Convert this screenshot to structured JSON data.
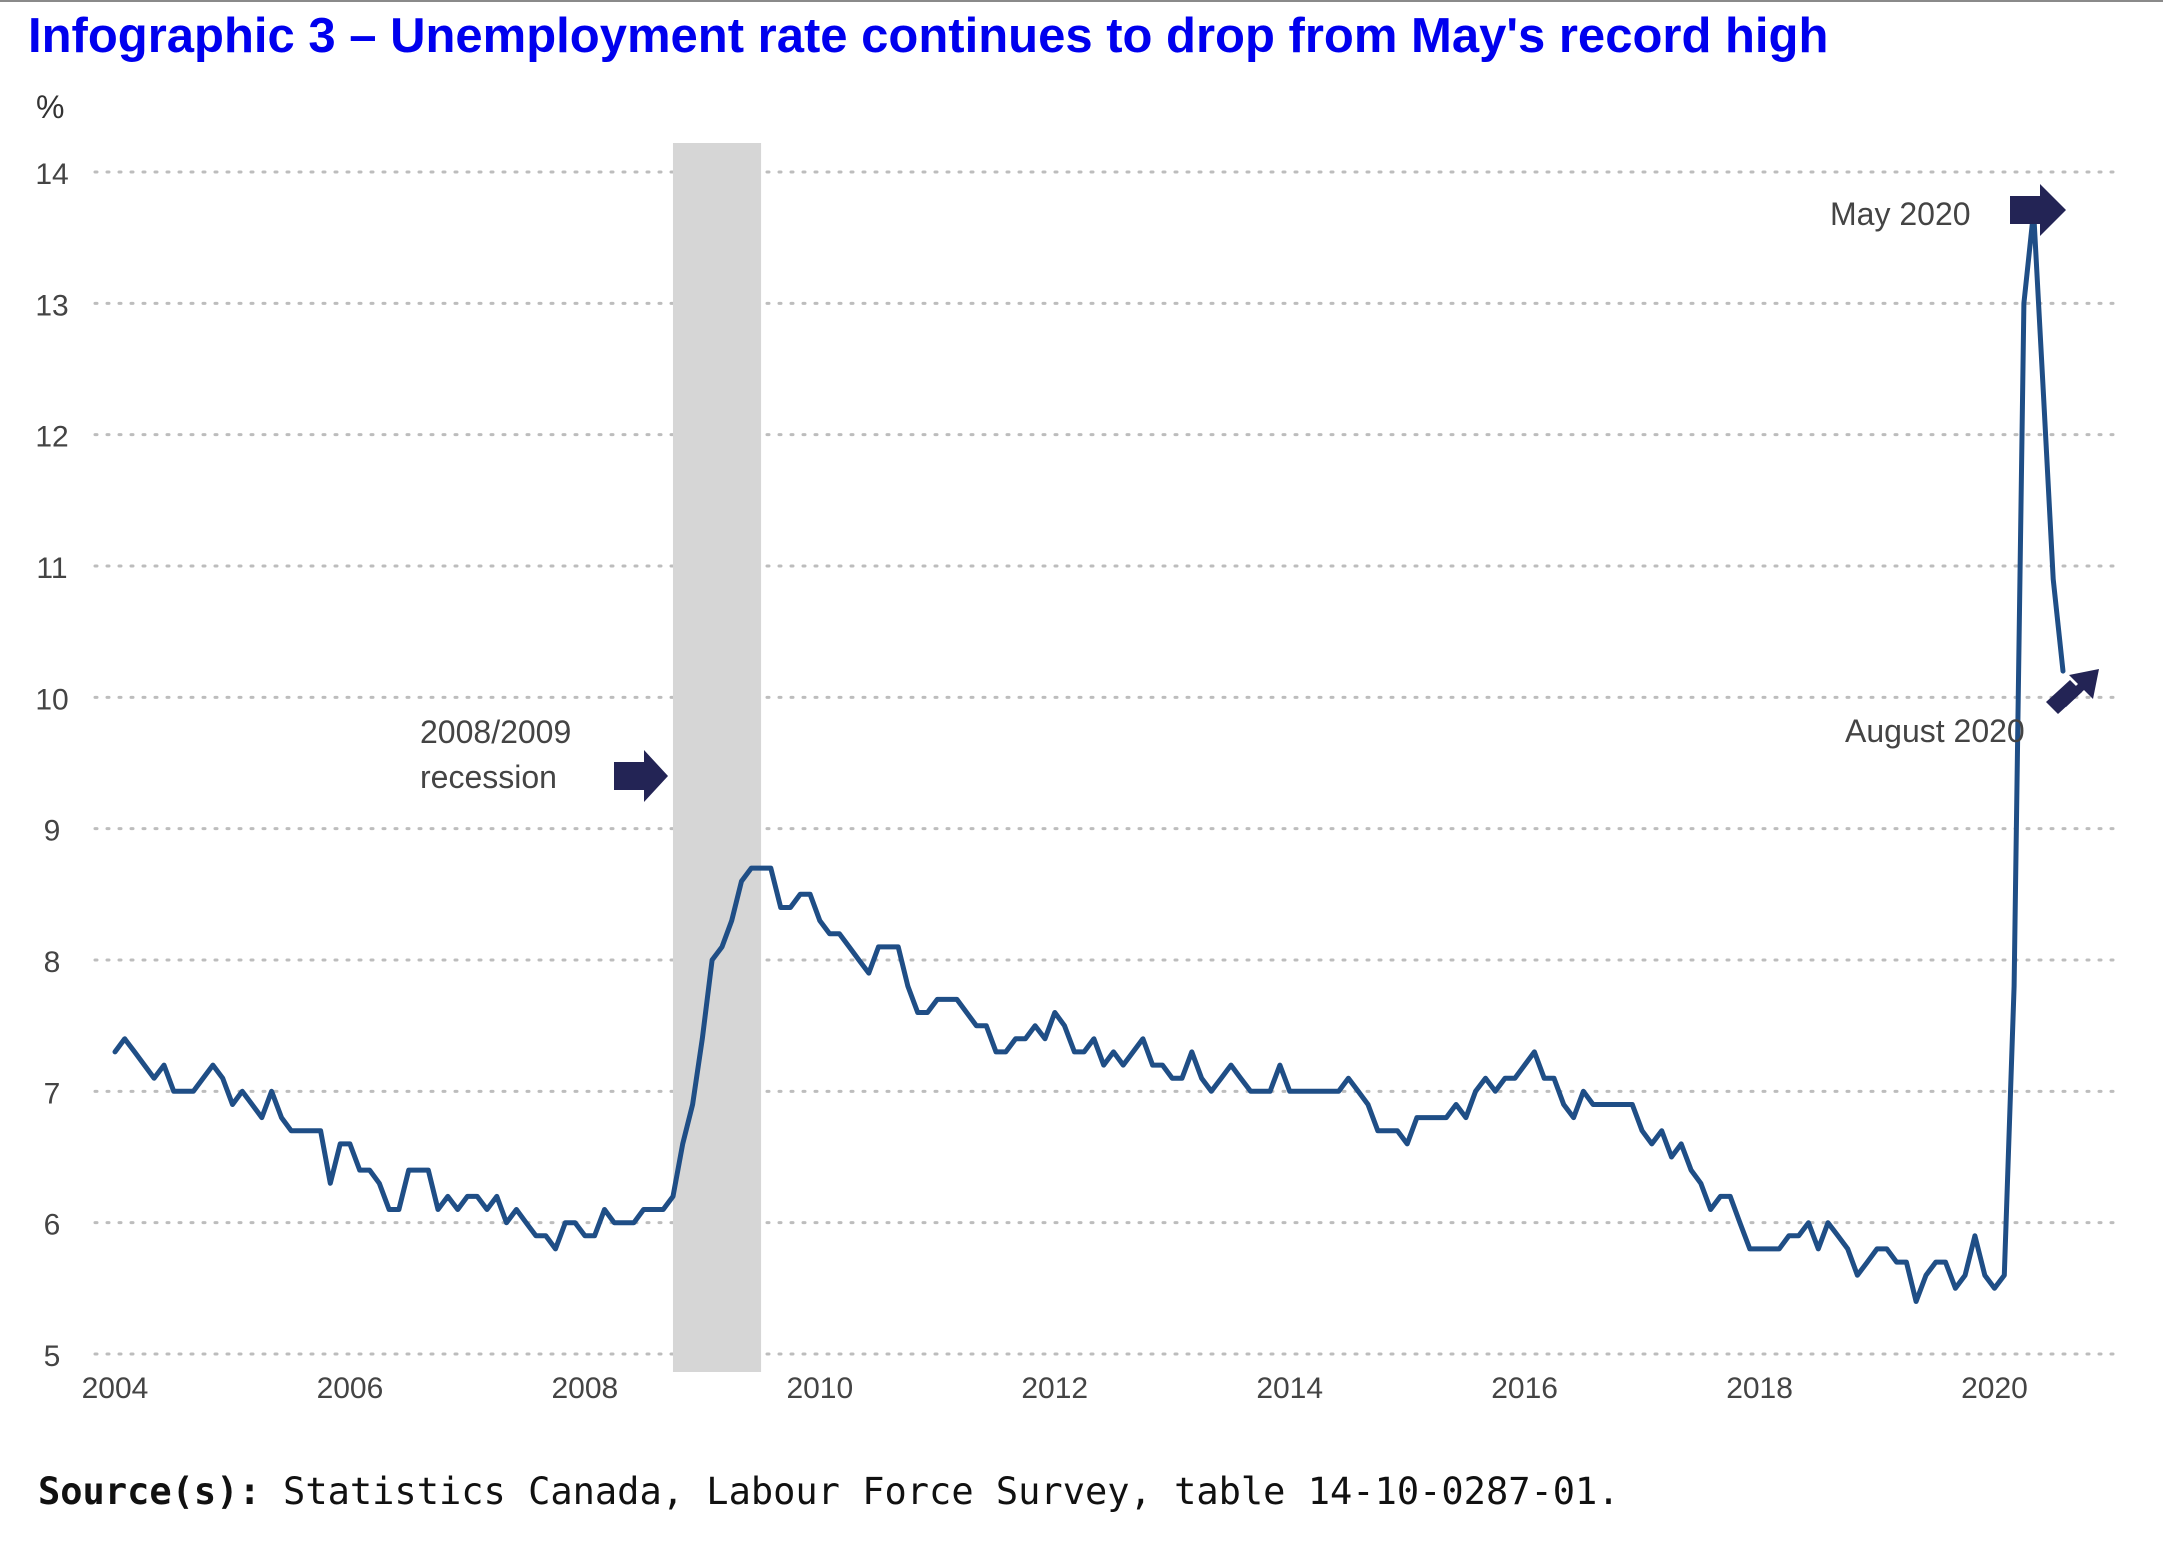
{
  "title": "Infographic 3 –  Unemployment rate continues to drop from May's record high",
  "source": {
    "label": "Source(s):",
    "text": "Statistics Canada, Labour Force Survey, table 14-10-0287-01."
  },
  "colors": {
    "title": "#0000ee",
    "line": "#1f4e86",
    "recession_band": "#d6d6d6",
    "arrow": "#232455",
    "grid": "#bdbdbd",
    "text": "#444444"
  },
  "chart_data": {
    "type": "line",
    "ylabel": "%",
    "xlabel": "",
    "ylim": [
      5,
      14
    ],
    "xlim": [
      2004,
      2020.83
    ],
    "y_ticks": [
      "5",
      "6",
      "7",
      "8",
      "9",
      "10",
      "11",
      "12",
      "13",
      "14"
    ],
    "x_ticks": [
      "2004",
      "2006",
      "2008",
      "2010",
      "2012",
      "2014",
      "2016",
      "2018",
      "2020"
    ],
    "grid": "horizontal dotted",
    "shaded_period": {
      "start": 2008.75,
      "end": 2009.5
    },
    "annotations": [
      {
        "text_lines": [
          "2008/2009",
          "recession"
        ],
        "x": 2008.75,
        "y": 9.4
      },
      {
        "text_lines": [
          "May 2020"
        ],
        "x": 2020.33,
        "y": 13.7
      },
      {
        "text_lines": [
          "August 2020"
        ],
        "x": 2020.58,
        "y": 10.2
      }
    ],
    "series": [
      {
        "x": [
          2004.0,
          2004.083,
          2004.167,
          2004.25,
          2004.333,
          2004.417,
          2004.5,
          2004.583,
          2004.667,
          2004.75,
          2004.833,
          2004.917,
          2005.0,
          2005.083,
          2005.167,
          2005.25,
          2005.333,
          2005.417,
          2005.5,
          2005.583,
          2005.667,
          2005.75,
          2005.833,
          2005.917,
          2006.0,
          2006.083,
          2006.167,
          2006.25,
          2006.333,
          2006.417,
          2006.5,
          2006.583,
          2006.667,
          2006.75,
          2006.833,
          2006.917,
          2007.0,
          2007.083,
          2007.167,
          2007.25,
          2007.333,
          2007.417,
          2007.5,
          2007.583,
          2007.667,
          2007.75,
          2007.833,
          2007.917,
          2008.0,
          2008.083,
          2008.167,
          2008.25,
          2008.333,
          2008.417,
          2008.5,
          2008.583,
          2008.667,
          2008.75,
          2008.833,
          2008.917,
          2009.0,
          2009.083,
          2009.167,
          2009.25,
          2009.333,
          2009.417,
          2009.5,
          2009.583,
          2009.667,
          2009.75,
          2009.833,
          2009.917,
          2010.0,
          2010.083,
          2010.167,
          2010.25,
          2010.333,
          2010.417,
          2010.5,
          2010.583,
          2010.667,
          2010.75,
          2010.833,
          2010.917,
          2011.0,
          2011.083,
          2011.167,
          2011.25,
          2011.333,
          2011.417,
          2011.5,
          2011.583,
          2011.667,
          2011.75,
          2011.833,
          2011.917,
          2012.0,
          2012.083,
          2012.167,
          2012.25,
          2012.333,
          2012.417,
          2012.5,
          2012.583,
          2012.667,
          2012.75,
          2012.833,
          2012.917,
          2013.0,
          2013.083,
          2013.167,
          2013.25,
          2013.333,
          2013.417,
          2013.5,
          2013.583,
          2013.667,
          2013.75,
          2013.833,
          2013.917,
          2014.0,
          2014.083,
          2014.167,
          2014.25,
          2014.333,
          2014.417,
          2014.5,
          2014.583,
          2014.667,
          2014.75,
          2014.833,
          2014.917,
          2015.0,
          2015.083,
          2015.167,
          2015.25,
          2015.333,
          2015.417,
          2015.5,
          2015.583,
          2015.667,
          2015.75,
          2015.833,
          2015.917,
          2016.0,
          2016.083,
          2016.167,
          2016.25,
          2016.333,
          2016.417,
          2016.5,
          2016.583,
          2016.667,
          2016.75,
          2016.833,
          2016.917,
          2017.0,
          2017.083,
          2017.167,
          2017.25,
          2017.333,
          2017.417,
          2017.5,
          2017.583,
          2017.667,
          2017.75,
          2017.833,
          2017.917,
          2018.0,
          2018.083,
          2018.167,
          2018.25,
          2018.333,
          2018.417,
          2018.5,
          2018.583,
          2018.667,
          2018.75,
          2018.833,
          2018.917,
          2019.0,
          2019.083,
          2019.167,
          2019.25,
          2019.333,
          2019.417,
          2019.5,
          2019.583,
          2019.667,
          2019.75,
          2019.833,
          2019.917,
          2020.0,
          2020.083,
          2020.167,
          2020.25,
          2020.333,
          2020.417,
          2020.5,
          2020.583
        ],
        "y": [
          7.3,
          7.4,
          7.3,
          7.2,
          7.1,
          7.2,
          7.0,
          7.0,
          7.0,
          7.1,
          7.2,
          7.1,
          6.9,
          7.0,
          6.9,
          6.8,
          7.0,
          6.8,
          6.7,
          6.7,
          6.7,
          6.7,
          6.3,
          6.6,
          6.6,
          6.4,
          6.4,
          6.3,
          6.1,
          6.1,
          6.4,
          6.4,
          6.4,
          6.1,
          6.2,
          6.1,
          6.2,
          6.2,
          6.1,
          6.2,
          6.0,
          6.1,
          6.0,
          5.9,
          5.9,
          5.8,
          6.0,
          6.0,
          5.9,
          5.9,
          6.1,
          6.0,
          6.0,
          6.0,
          6.1,
          6.1,
          6.1,
          6.2,
          6.6,
          6.9,
          7.4,
          8.0,
          8.1,
          8.3,
          8.6,
          8.7,
          8.7,
          8.7,
          8.4,
          8.4,
          8.5,
          8.5,
          8.3,
          8.2,
          8.2,
          8.1,
          8.0,
          7.9,
          8.1,
          8.1,
          8.1,
          7.8,
          7.6,
          7.6,
          7.7,
          7.7,
          7.7,
          7.6,
          7.5,
          7.5,
          7.3,
          7.3,
          7.4,
          7.4,
          7.5,
          7.4,
          7.6,
          7.5,
          7.3,
          7.3,
          7.4,
          7.2,
          7.3,
          7.2,
          7.3,
          7.4,
          7.2,
          7.2,
          7.1,
          7.1,
          7.3,
          7.1,
          7.0,
          7.1,
          7.2,
          7.1,
          7.0,
          7.0,
          7.0,
          7.2,
          7.0,
          7.0,
          7.0,
          7.0,
          7.0,
          7.0,
          7.1,
          7.0,
          6.9,
          6.7,
          6.7,
          6.7,
          6.6,
          6.8,
          6.8,
          6.8,
          6.8,
          6.9,
          6.8,
          7.0,
          7.1,
          7.0,
          7.1,
          7.1,
          7.2,
          7.3,
          7.1,
          7.1,
          6.9,
          6.8,
          7.0,
          6.9,
          6.9,
          6.9,
          6.9,
          6.9,
          6.7,
          6.6,
          6.7,
          6.5,
          6.6,
          6.4,
          6.3,
          6.1,
          6.2,
          6.2,
          6.0,
          5.8,
          5.8,
          5.8,
          5.8,
          5.9,
          5.9,
          6.0,
          5.8,
          6.0,
          5.9,
          5.8,
          5.6,
          5.7,
          5.8,
          5.8,
          5.7,
          5.7,
          5.4,
          5.6,
          5.7,
          5.7,
          5.5,
          5.6,
          5.9,
          5.6,
          5.5,
          5.6,
          7.8,
          13.0,
          13.7,
          12.3,
          10.9,
          10.2
        ]
      }
    ]
  }
}
